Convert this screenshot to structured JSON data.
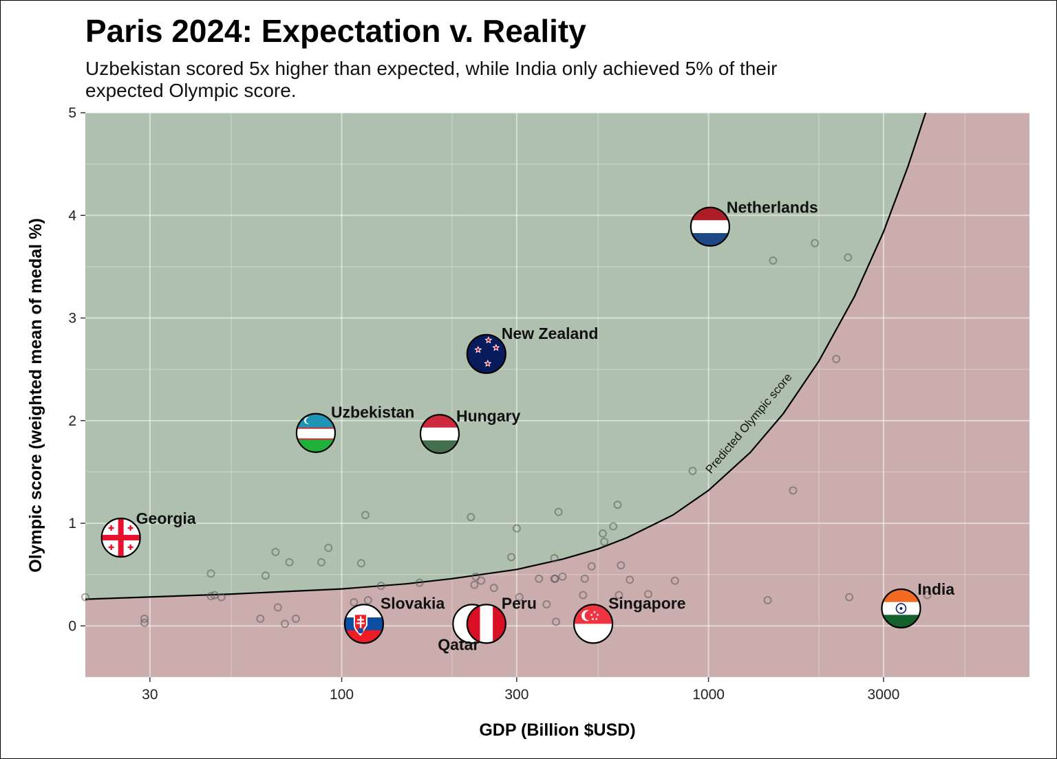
{
  "chart_data": {
    "type": "scatter",
    "title": "Paris 2024: Expectation v. Reality",
    "subtitle": "Uzbekistan scored 5x higher than expected, while India only achieved 5% of their expected Olympic score.",
    "xlabel": "GDP (Billion $USD)",
    "ylabel": "Olympic score (weighted mean of medal %)",
    "x_scale": "log",
    "xlim": [
      20,
      7500
    ],
    "ylim": [
      -0.5,
      5
    ],
    "x_ticks": [
      30,
      100,
      300,
      1000,
      3000
    ],
    "x_tick_labels": [
      "30",
      "100",
      "300",
      "1000",
      "3000"
    ],
    "y_ticks": [
      0,
      1,
      2,
      3,
      4,
      5
    ],
    "y_tick_labels": [
      "0",
      "1",
      "2",
      "3",
      "4",
      "5"
    ],
    "grid": true,
    "curve_label": "Predicted Olympic score",
    "region_colors": {
      "above": "#afc1ae",
      "below": "#cbadad"
    },
    "curve": {
      "x": [
        20,
        50,
        100,
        150,
        200,
        300,
        400,
        500,
        600,
        800,
        1000,
        1300,
        1600,
        2000,
        2500,
        3000,
        3500,
        4000
      ],
      "y": [
        0.26,
        0.31,
        0.36,
        0.41,
        0.46,
        0.55,
        0.65,
        0.75,
        0.86,
        1.08,
        1.32,
        1.69,
        2.07,
        2.58,
        3.21,
        3.84,
        4.48,
        5.11
      ]
    },
    "highlighted": [
      {
        "name": "Netherlands",
        "x": 1010,
        "y": 3.89,
        "flag": "netherlands"
      },
      {
        "name": "New Zealand",
        "x": 248,
        "y": 2.65,
        "flag": "new-zealand"
      },
      {
        "name": "Uzbekistan",
        "x": 85,
        "y": 1.88,
        "flag": "uzbekistan"
      },
      {
        "name": "Hungary",
        "x": 185,
        "y": 1.87,
        "flag": "hungary"
      },
      {
        "name": "Georgia",
        "x": 25,
        "y": 0.86,
        "flag": "georgia"
      },
      {
        "name": "Slovakia",
        "x": 115,
        "y": 0.02,
        "flag": "slovakia"
      },
      {
        "name": "Qatar",
        "x": 237,
        "y": 0.02,
        "flag": "qatar"
      },
      {
        "name": "Peru",
        "x": 248,
        "y": 0.02,
        "flag": "peru"
      },
      {
        "name": "Singapore",
        "x": 485,
        "y": 0.02,
        "flag": "singapore"
      },
      {
        "name": "India",
        "x": 3350,
        "y": 0.17,
        "flag": "india"
      }
    ],
    "others": {
      "x": [
        20,
        29,
        29,
        44,
        44,
        45,
        47,
        60,
        62,
        66,
        67,
        70,
        72,
        75,
        88,
        92,
        108,
        113,
        116,
        118,
        128,
        163,
        225,
        230,
        232,
        240,
        260,
        290,
        300,
        305,
        345,
        362,
        380,
        380,
        382,
        384,
        390,
        400,
        455,
        460,
        480,
        515,
        520,
        550,
        565,
        570,
        577,
        610,
        685,
        810,
        905,
        1450,
        1500,
        1700,
        1950,
        2230,
        2400,
        2420,
        3950
      ],
      "y": [
        0.28,
        0.03,
        0.07,
        0.51,
        0.29,
        0.3,
        0.28,
        0.07,
        0.49,
        0.72,
        0.18,
        0.02,
        0.62,
        0.07,
        0.62,
        0.76,
        0.23,
        0.61,
        1.08,
        0.25,
        0.39,
        0.42,
        1.06,
        0.4,
        0.48,
        0.44,
        0.37,
        0.67,
        0.95,
        0.28,
        0.46,
        0.21,
        0.66,
        0.46,
        0.46,
        0.04,
        1.11,
        0.48,
        0.3,
        0.46,
        0.58,
        0.9,
        0.82,
        0.97,
        1.18,
        0.3,
        0.59,
        0.45,
        0.31,
        0.44,
        1.51,
        0.25,
        3.56,
        1.32,
        3.73,
        2.6,
        3.59,
        0.28,
        0.3
      ]
    }
  }
}
